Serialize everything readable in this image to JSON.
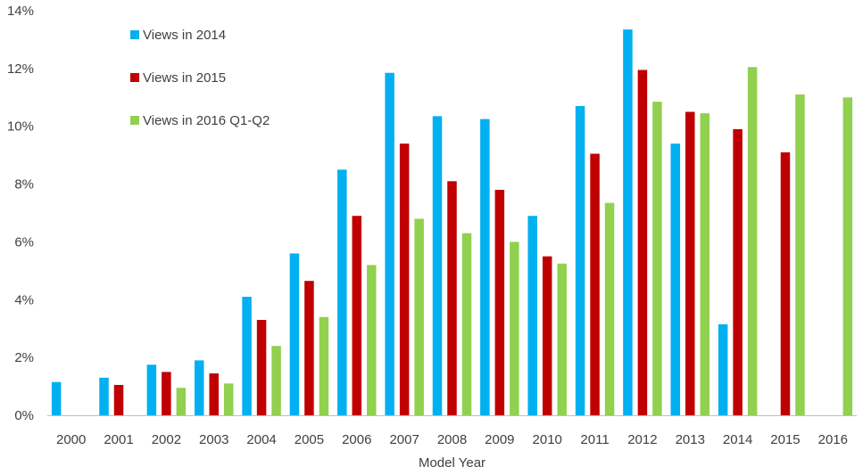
{
  "chart_data": {
    "type": "bar",
    "xlabel": "Model Year",
    "ylabel": "",
    "ylim": [
      0,
      14
    ],
    "yticks": [
      "0%",
      "2%",
      "4%",
      "6%",
      "8%",
      "10%",
      "12%",
      "14%"
    ],
    "ytick_values": [
      0,
      2,
      4,
      6,
      8,
      10,
      12,
      14
    ],
    "categories": [
      "2000",
      "2001",
      "2002",
      "2003",
      "2004",
      "2005",
      "2006",
      "2007",
      "2008",
      "2009",
      "2010",
      "2011",
      "2012",
      "2013",
      "2014",
      "2015",
      "2016"
    ],
    "series": [
      {
        "name": "Views in 2014",
        "color": "#00B0F0",
        "values": [
          1.15,
          1.3,
          1.75,
          1.9,
          4.1,
          5.6,
          8.5,
          11.85,
          10.35,
          10.25,
          6.9,
          10.7,
          13.35,
          9.4,
          3.15,
          null,
          null
        ]
      },
      {
        "name": "Views in 2015",
        "color": "#C00000",
        "values": [
          null,
          1.05,
          1.5,
          1.45,
          3.3,
          4.65,
          6.9,
          9.4,
          8.1,
          7.8,
          5.5,
          9.05,
          11.95,
          10.5,
          9.9,
          9.1,
          null
        ]
      },
      {
        "name": "Views in 2016 Q1-Q2",
        "color": "#92D050",
        "values": [
          null,
          null,
          0.95,
          1.1,
          2.4,
          3.4,
          5.2,
          6.8,
          6.3,
          6.0,
          5.25,
          7.35,
          10.85,
          10.45,
          12.05,
          11.1,
          11.0
        ]
      }
    ],
    "grid": false,
    "legend_position": "top-left"
  }
}
